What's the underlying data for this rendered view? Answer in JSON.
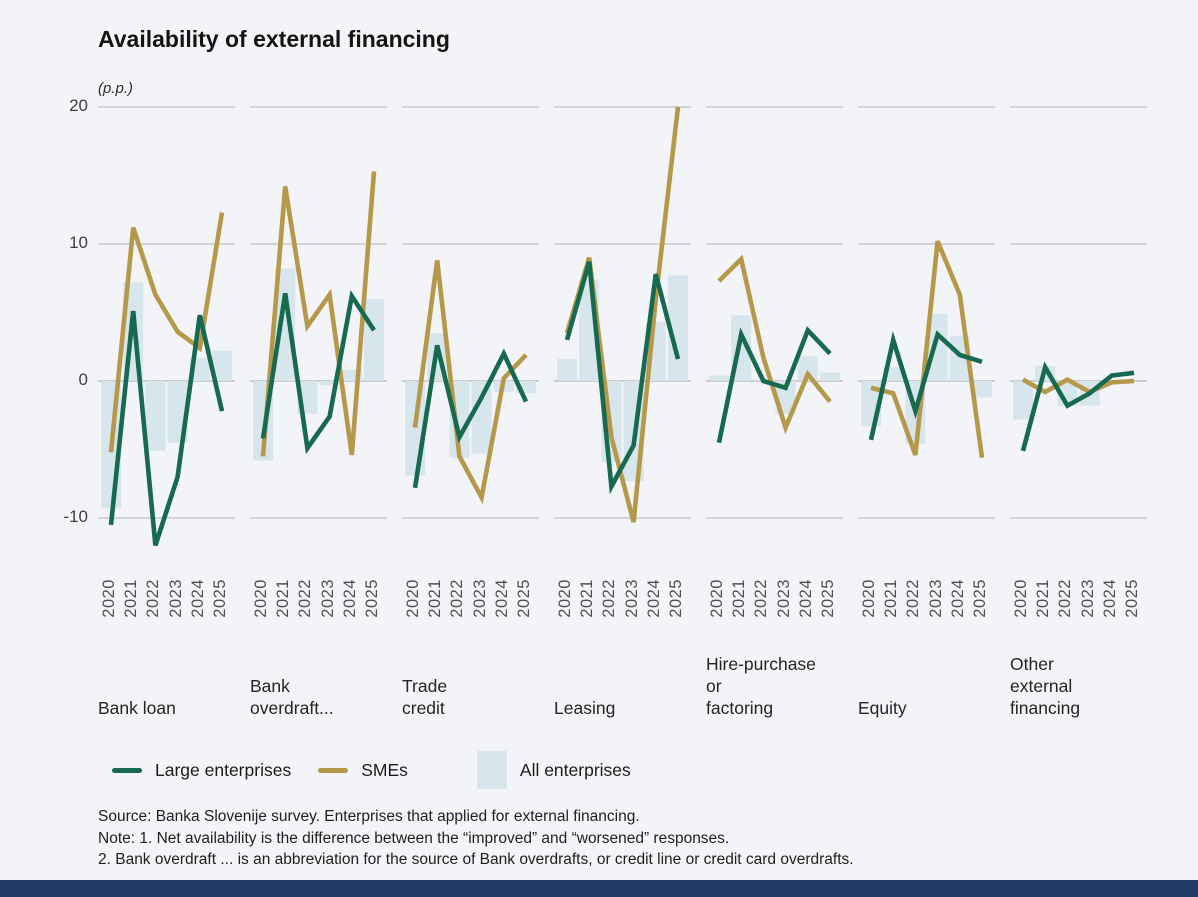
{
  "header": {
    "title": "Availability of external financing",
    "unit_label": "(p.p.)"
  },
  "legend": {
    "items": [
      {
        "label": "Large enterprises",
        "swatch": "line",
        "color": "#176a50"
      },
      {
        "label": "SMEs",
        "swatch": "line",
        "color": "#b5984a"
      },
      {
        "label": "All enterprises",
        "swatch": "box",
        "color": "#d7e5ec"
      }
    ]
  },
  "notes": {
    "source_line": "Source: Banka Slovenije survey. Enterprises that applied for external financing.",
    "note_line1": "Note: 1. Net availability is the difference between the “improved” and “worsened” responses.",
    "note_line2": "2. Bank overdraft ... is an abbreviation for the source of Bank overdrafts, or credit line or credit card overdrafts."
  },
  "chart_data": {
    "type": "bar",
    "subtype": "small-multiples bar + line combo",
    "title": "Availability of external financing",
    "ylabel": "(p.p.)",
    "categories": [
      "2020",
      "2021",
      "2022",
      "2023",
      "2024",
      "2025"
    ],
    "yticks": [
      20,
      10,
      0,
      -10
    ],
    "ylim": [
      -13.5,
      20
    ],
    "grid": true,
    "legend_position": "bottom",
    "colors": {
      "large_enterprises": "#176a50",
      "smes": "#b5984a",
      "all_enterprises": "#d7e5ec",
      "gridline": "#c9c9c9",
      "zeroline": "#bdbdbd"
    },
    "panels": [
      {
        "id": "bank-loan",
        "label_lines": [
          "Bank loan"
        ],
        "series": {
          "all_enterprises": [
            -9.3,
            7.2,
            -5.1,
            -4.5,
            1.7,
            2.2
          ],
          "large_enterprises": [
            -10.5,
            5.1,
            -12.0,
            -7.0,
            4.8,
            -2.2
          ],
          "smes": [
            -5.2,
            11.2,
            6.3,
            3.6,
            2.4,
            12.3
          ]
        }
      },
      {
        "id": "bank-overdraft",
        "label_lines": [
          "Bank",
          "overdraft..."
        ],
        "series": {
          "all_enterprises": [
            -5.8,
            8.2,
            -2.4,
            -0.3,
            0.8,
            6.0
          ],
          "large_enterprises": [
            -4.2,
            6.4,
            -4.9,
            -2.6,
            6.2,
            3.7
          ],
          "smes": [
            -5.5,
            14.2,
            4.0,
            6.3,
            -5.4,
            15.3
          ]
        }
      },
      {
        "id": "trade-credit",
        "label_lines": [
          "Trade",
          "credit"
        ],
        "series": {
          "all_enterprises": [
            -6.9,
            3.5,
            -5.6,
            -5.3,
            -0.8,
            -0.9
          ],
          "large_enterprises": [
            -7.8,
            2.6,
            -4.1,
            -1.2,
            2.0,
            -1.5
          ],
          "smes": [
            -3.4,
            8.8,
            -5.5,
            -8.5,
            0.2,
            1.9
          ]
        }
      },
      {
        "id": "leasing",
        "label_lines": [
          "Leasing"
        ],
        "series": {
          "all_enterprises": [
            1.6,
            7.4,
            -5.9,
            -7.3,
            4.3,
            7.7
          ],
          "large_enterprises": [
            3.0,
            8.7,
            -7.7,
            -4.7,
            7.8,
            1.6
          ],
          "smes": [
            3.5,
            9.0,
            -4.1,
            -10.3,
            6.0,
            20.0
          ]
        }
      },
      {
        "id": "hire-purchase-or-factoring",
        "label_lines": [
          "Hire-purchase",
          "or",
          "factoring"
        ],
        "series": {
          "all_enterprises": [
            0.4,
            4.8,
            0.1,
            -2.4,
            1.8,
            0.6
          ],
          "large_enterprises": [
            -4.5,
            3.4,
            0.0,
            -0.5,
            3.7,
            2.0
          ],
          "smes": [
            7.3,
            8.9,
            1.7,
            -3.4,
            0.5,
            -1.5
          ]
        }
      },
      {
        "id": "equity",
        "label_lines": [
          "Equity"
        ],
        "series": {
          "all_enterprises": [
            -3.3,
            1.0,
            -4.6,
            4.9,
            3.3,
            -1.2
          ],
          "large_enterprises": [
            -4.3,
            3.0,
            -2.2,
            3.4,
            1.9,
            1.4
          ],
          "smes": [
            -0.5,
            -0.9,
            -5.4,
            10.2,
            6.3,
            -5.6
          ]
        }
      },
      {
        "id": "other-external-financing",
        "label_lines": [
          "Other",
          "external",
          "financing"
        ],
        "series": {
          "all_enterprises": [
            -2.8,
            1.1,
            -1.8,
            -1.8,
            0.0,
            0.0
          ],
          "large_enterprises": [
            -5.1,
            1.0,
            -1.8,
            -0.9,
            0.4,
            0.6
          ],
          "smes": [
            0.1,
            -0.8,
            0.1,
            -0.8,
            -0.1,
            0.0
          ]
        }
      }
    ]
  },
  "footer": {
    "bar_color": "#1f3a63"
  }
}
